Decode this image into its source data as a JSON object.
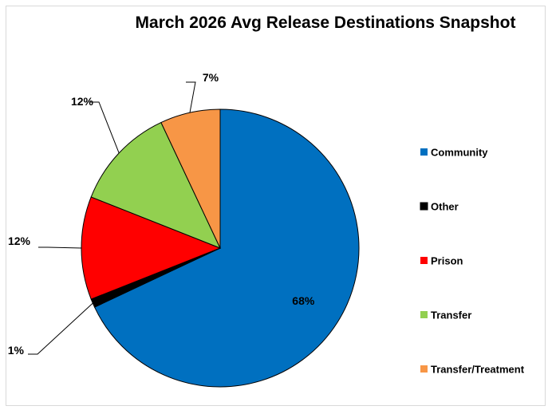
{
  "chart_data": {
    "type": "pie",
    "title": "March 2026 Avg Release Destinations Snapshot",
    "legend_position": "right",
    "slices": [
      {
        "label": "Community",
        "value": 68,
        "display": "68%",
        "color": "#0070c0"
      },
      {
        "label": "Other",
        "value": 1,
        "display": "1%",
        "color": "#000000"
      },
      {
        "label": "Prison",
        "value": 12,
        "display": "12%",
        "color": "#ff0000"
      },
      {
        "label": "Transfer",
        "value": 12,
        "display": "12%",
        "color": "#92d050"
      },
      {
        "label": "Transfer/Treatment",
        "value": 7,
        "display": "7%",
        "color": "#f79646"
      }
    ]
  }
}
